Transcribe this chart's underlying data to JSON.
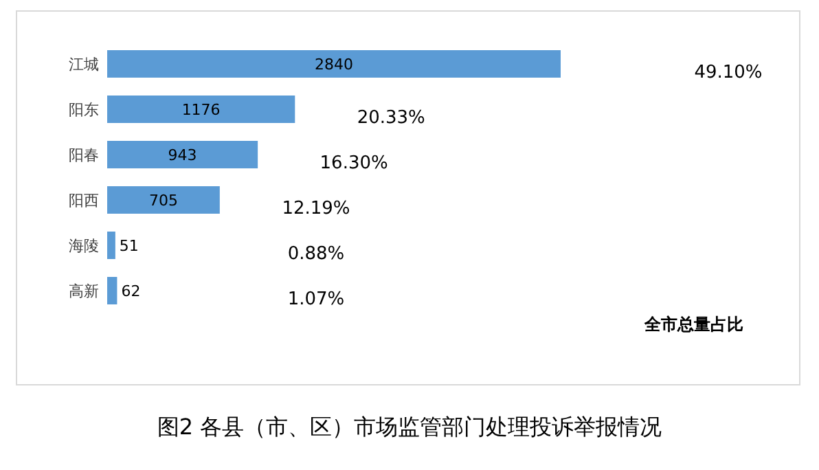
{
  "chart_data": {
    "type": "bar",
    "orientation": "horizontal",
    "title": "图2 各县（市、区）市场监管部门处理投诉举报情况",
    "categories": [
      "江城",
      "阳东",
      "阳春",
      "阳西",
      "海陵",
      "高新"
    ],
    "values": [
      2840,
      1176,
      943,
      705,
      51,
      62
    ],
    "color": "#5b9bd5",
    "data_labels": true,
    "annotations": [
      "49.10%",
      "20.33%",
      "16.30%",
      "12.19%",
      "0.88%",
      "1.07%",
      "全市总量占比"
    ]
  }
}
